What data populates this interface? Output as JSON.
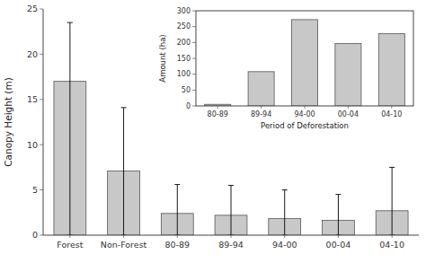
{
  "chart_data": [
    {
      "type": "bar",
      "categories": [
        "Forest",
        "Non-Forest",
        "80-89",
        "89-94",
        "94-00",
        "00-04",
        "04-10"
      ],
      "values": [
        17.0,
        7.1,
        2.4,
        2.2,
        1.85,
        1.65,
        2.7
      ],
      "errors_down": [
        17.0,
        7.1,
        2.4,
        2.2,
        1.85,
        1.65,
        2.7
      ],
      "errors_up": [
        6.5,
        7.0,
        3.2,
        3.3,
        3.15,
        2.85,
        4.8
      ],
      "y_label": "Canopy Height (m)",
      "ylim": [
        0,
        25
      ],
      "yticks": [
        0,
        5,
        10,
        15,
        20,
        25
      ],
      "color": "#c8c8c8"
    },
    {
      "type": "bar",
      "categories": [
        "80-89",
        "89-94",
        "94-00",
        "00-04",
        "04-10"
      ],
      "values": [
        5,
        108,
        272,
        197,
        228
      ],
      "x_label": "Period of Deforestation",
      "y_label": "Amount (ha)",
      "ylim": [
        0,
        300
      ],
      "yticks": [
        0,
        50,
        100,
        150,
        200,
        250,
        300
      ],
      "color": "#c8c8c8"
    }
  ]
}
